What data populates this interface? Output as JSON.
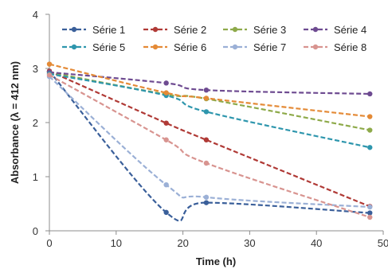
{
  "chart_data": {
    "type": "line",
    "xlabel": "Time (h)",
    "ylabel": "Absorbance (λ = 412 nm)",
    "xlim": [
      0,
      50
    ],
    "ylim": [
      0,
      4
    ],
    "xticks": [
      0,
      10,
      20,
      30,
      40,
      50
    ],
    "yticks": [
      0,
      1,
      2,
      3,
      4
    ],
    "grid": false,
    "legend_position": "top",
    "series": [
      {
        "name": "Série 1",
        "color": "#3a5f9a",
        "x": [
          0,
          17.5,
          23.5,
          48
        ],
        "y": [
          2.95,
          0.34,
          0.52,
          0.33
        ]
      },
      {
        "name": "Série 2",
        "color": "#b03a36",
        "x": [
          0,
          17.5,
          23.5,
          48
        ],
        "y": [
          2.95,
          1.99,
          1.68,
          0.45
        ]
      },
      {
        "name": "Série 3",
        "color": "#8eaa4a",
        "x": [
          0,
          17.5,
          23.5,
          48
        ],
        "y": [
          2.93,
          2.52,
          2.44,
          1.86
        ]
      },
      {
        "name": "Série 4",
        "color": "#6e4b91",
        "x": [
          0,
          17.5,
          23.5,
          48
        ],
        "y": [
          2.93,
          2.73,
          2.6,
          2.53
        ]
      },
      {
        "name": "Série 5",
        "color": "#2e96ad",
        "x": [
          0,
          17.5,
          23.5,
          48
        ],
        "y": [
          2.9,
          2.5,
          2.2,
          1.54
        ]
      },
      {
        "name": "Série 6",
        "color": "#e48a36",
        "x": [
          0,
          17.5,
          23.5,
          48
        ],
        "y": [
          3.08,
          2.55,
          2.45,
          2.11
        ]
      },
      {
        "name": "Série 7",
        "color": "#9bb0d6",
        "x": [
          0,
          17.5,
          23.5,
          48
        ],
        "y": [
          2.85,
          0.85,
          0.62,
          0.44
        ]
      },
      {
        "name": "Série 8",
        "color": "#d89490",
        "x": [
          0,
          17.5,
          23.5,
          48
        ],
        "y": [
          2.88,
          1.68,
          1.25,
          0.25
        ]
      }
    ]
  }
}
